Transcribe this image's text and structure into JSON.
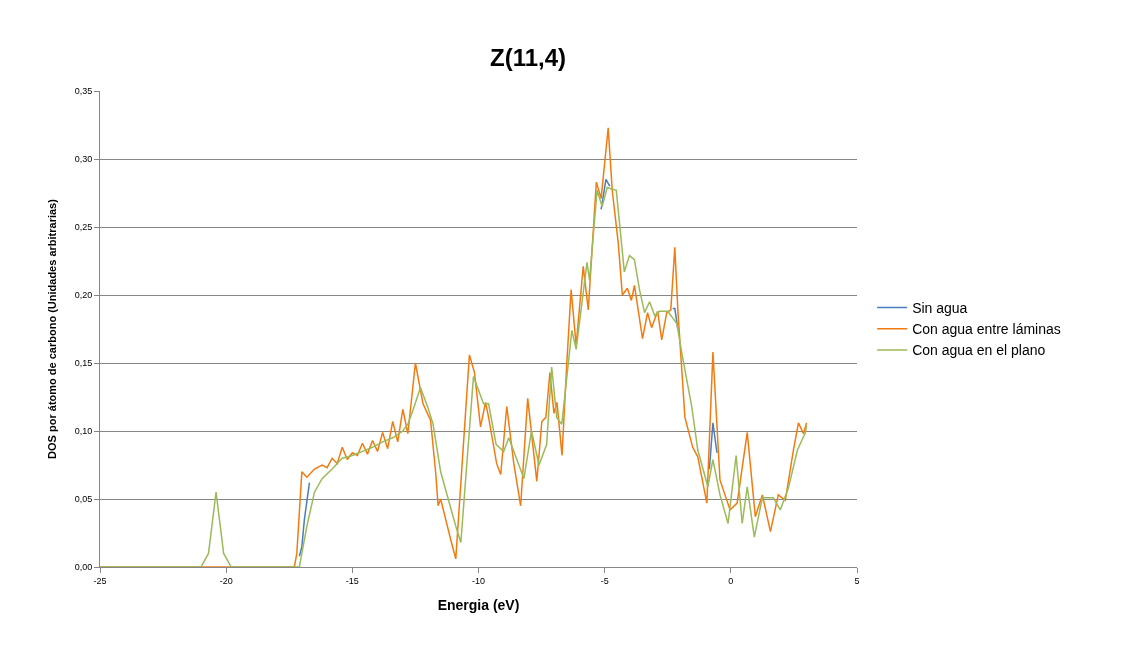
{
  "chart_data": {
    "type": "line",
    "title": "Z(11,4)",
    "xlabel": "Energia (eV)",
    "ylabel": "DOS por átomo de carbono (Unidades arbitrarias)",
    "xlim": [
      -25,
      5
    ],
    "xticks": [
      -25,
      -20,
      -15,
      -10,
      -5,
      0,
      5
    ],
    "ylim": [
      0,
      0.35
    ],
    "yticks": [
      {
        "value": 0,
        "label": "0,00"
      },
      {
        "value": 0.05,
        "label": "0,05"
      },
      {
        "value": 0.1,
        "label": "0,10"
      },
      {
        "value": 0.15,
        "label": "0,15"
      },
      {
        "value": 0.2,
        "label": "0,20"
      },
      {
        "value": 0.25,
        "label": "0,25"
      },
      {
        "value": 0.3,
        "label": "0,30"
      },
      {
        "value": 0.35,
        "label": "0,35"
      }
    ],
    "grid": "y",
    "legend": "right",
    "marker": "none",
    "line_style": "solid",
    "series": [
      {
        "name": "Sin agua",
        "color": "#4a7ebb",
        "x": [
          -17.1,
          -17.0,
          -16.9,
          -16.7,
          -16.0,
          -5.14,
          -4.95,
          -4.8,
          -3.0,
          -2.3,
          -2.22,
          -2.1,
          -1.0,
          -0.85,
          -0.71,
          -0.55
        ],
        "values": [
          0.008,
          0.015,
          0.035,
          0.062,
          null,
          0.263,
          0.285,
          0.28,
          null,
          0.19,
          0.19,
          0.175,
          null,
          0.072,
          0.106,
          0.084
        ]
      },
      {
        "name": "Con agua entre láminas",
        "color": "#f27b10",
        "x": [
          -25,
          -17.3,
          -17.2,
          -17.0,
          -16.8,
          -16.5,
          -16.2,
          -16.0,
          -15.8,
          -15.6,
          -15.4,
          -15.2,
          -15.0,
          -14.8,
          -14.6,
          -14.4,
          -14.2,
          -14.0,
          -13.8,
          -13.6,
          -13.4,
          -13.2,
          -13.0,
          -12.8,
          -12.5,
          -12.2,
          -11.9,
          -11.7,
          -11.6,
          -11.5,
          -11.3,
          -11.1,
          -10.9,
          -10.36,
          -10.16,
          -9.92,
          -9.72,
          -9.6,
          -9.28,
          -9.12,
          -8.88,
          -8.6,
          -8.33,
          -8.05,
          -7.69,
          -7.49,
          -7.33,
          -7.17,
          -7.01,
          -6.89,
          -6.69,
          -6.5,
          -6.33,
          -6.13,
          -5.85,
          -5.65,
          -5.33,
          -5.14,
          -4.86,
          -4.7,
          -4.46,
          -4.3,
          -4.1,
          -3.94,
          -3.82,
          -3.5,
          -3.3,
          -3.14,
          -2.9,
          -2.74,
          -2.54,
          -2.38,
          -2.22,
          -2.1,
          -1.82,
          -1.51,
          -1.31,
          -0.95,
          -0.71,
          -0.43,
          -0.03,
          0.25,
          0.65,
          0.97,
          1.25,
          1.57,
          1.88,
          2.16,
          2.48,
          2.68,
          2.88,
          3.0
        ],
        "values": [
          0,
          0,
          0.01,
          0.07,
          0.066,
          0.072,
          0.075,
          0.073,
          0.08,
          0.076,
          0.088,
          0.079,
          0.084,
          0.082,
          0.091,
          0.083,
          0.093,
          0.085,
          0.099,
          0.087,
          0.107,
          0.092,
          0.116,
          0.098,
          0.15,
          0.12,
          0.108,
          0.07,
          0.045,
          0.05,
          0.035,
          0.02,
          0.006,
          0.156,
          0.143,
          0.103,
          0.121,
          0.11,
          0.076,
          0.068,
          0.118,
          0.076,
          0.045,
          0.124,
          0.063,
          0.107,
          0.11,
          0.143,
          0.113,
          0.121,
          0.082,
          0.15,
          0.204,
          0.163,
          0.221,
          0.189,
          0.283,
          0.271,
          0.323,
          0.277,
          0.238,
          0.2,
          0.205,
          0.196,
          0.207,
          0.168,
          0.187,
          0.176,
          0.188,
          0.167,
          0.187,
          0.189,
          0.235,
          0.189,
          0.11,
          0.088,
          0.081,
          0.047,
          0.158,
          0.064,
          0.042,
          0.047,
          0.099,
          0.037,
          0.053,
          0.026,
          0.053,
          0.049,
          0.086,
          0.106,
          0.098,
          0.106
        ]
      },
      {
        "name": "Con agua en el plano",
        "color": "#9bbb59",
        "x": [
          -25,
          -21.0,
          -20.7,
          -20.4,
          -20.1,
          -19.8,
          -17.1,
          -16.8,
          -16.5,
          -16.2,
          -15.8,
          -15.4,
          -15.0,
          -14.6,
          -14.2,
          -13.8,
          -13.4,
          -13.0,
          -12.8,
          -12.6,
          -12.3,
          -12.0,
          -11.8,
          -11.5,
          -11.2,
          -10.9,
          -10.7,
          -10.2,
          -9.8,
          -9.6,
          -9.3,
          -9.0,
          -8.8,
          -8.4,
          -8.2,
          -7.9,
          -7.6,
          -7.3,
          -7.1,
          -6.9,
          -6.7,
          -6.3,
          -6.13,
          -5.7,
          -5.6,
          -5.3,
          -5.1,
          -4.9,
          -4.54,
          -4.22,
          -4.02,
          -3.82,
          -3.62,
          -3.42,
          -3.22,
          -3.02,
          -2.82,
          -2.5,
          -2.14,
          -1.94,
          -1.55,
          -1.31,
          -0.91,
          -0.71,
          -0.43,
          -0.11,
          0.21,
          0.45,
          0.65,
          0.93,
          1.25,
          1.68,
          1.96,
          2.28,
          2.64,
          2.96,
          3.0
        ],
        "values": [
          0,
          0,
          0.01,
          0.055,
          0.01,
          0,
          0,
          0.03,
          0.055,
          0.065,
          0.072,
          0.08,
          0.082,
          0.085,
          0.088,
          0.092,
          0.095,
          0.1,
          0.105,
          0.115,
          0.132,
          0.117,
          0.105,
          0.07,
          0.05,
          0.03,
          0.018,
          0.14,
          0.12,
          0.12,
          0.09,
          0.085,
          0.095,
          0.075,
          0.065,
          0.1,
          0.075,
          0.09,
          0.147,
          0.11,
          0.105,
          0.174,
          0.16,
          0.224,
          0.211,
          0.277,
          0.265,
          0.279,
          0.277,
          0.217,
          0.229,
          0.226,
          0.204,
          0.187,
          0.195,
          0.185,
          0.188,
          0.188,
          0.179,
          0.157,
          0.118,
          0.086,
          0.059,
          0.079,
          0.053,
          0.032,
          0.082,
          0.032,
          0.059,
          0.022,
          0.051,
          0.051,
          0.042,
          0.058,
          0.086,
          0.099,
          0.104
        ]
      }
    ]
  }
}
